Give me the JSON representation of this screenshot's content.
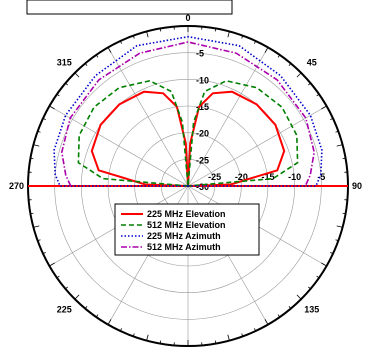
{
  "chart_data": {
    "type": "polar",
    "angle_direction": "clockwise",
    "angle_zero": "top",
    "angle_labels": [
      "0",
      "45",
      "90",
      "135",
      "225",
      "270",
      "315"
    ],
    "radial_labels": [
      "-5",
      "-10",
      "-15",
      "-20",
      "-25",
      "-30"
    ],
    "radial_axis_labels": [
      "-25",
      "-20",
      "-15",
      "-10",
      "-5"
    ],
    "rlim_db": [
      -30,
      0
    ],
    "ring_step_db": 5,
    "grid": true,
    "legend_position": "lower-center",
    "series": [
      {
        "name": "225 MHz Elevation",
        "color": "#ff0000",
        "style": "solid",
        "points": [
          [
            0,
            -30
          ],
          [
            3,
            -22
          ],
          [
            8,
            -15
          ],
          [
            15,
            -12
          ],
          [
            25,
            -10.5
          ],
          [
            40,
            -10
          ],
          [
            55,
            -10
          ],
          [
            70,
            -10.8
          ],
          [
            80,
            -13
          ],
          [
            88,
            -22
          ],
          [
            90,
            -30
          ]
        ]
      },
      {
        "name": "512 MHz Elevation",
        "color": "#008000",
        "style": "dashed",
        "points": [
          [
            0,
            -30
          ],
          [
            5,
            -18
          ],
          [
            10,
            -12
          ],
          [
            20,
            -9
          ],
          [
            35,
            -7.5
          ],
          [
            50,
            -7
          ],
          [
            65,
            -7.5
          ],
          [
            78,
            -9
          ],
          [
            85,
            -14
          ],
          [
            90,
            -30
          ]
        ]
      },
      {
        "name": "225 MHz Azimuth",
        "color": "#0000cc",
        "style": "dotted",
        "points": [
          [
            0,
            -2
          ],
          [
            20,
            -2
          ],
          [
            40,
            -3
          ],
          [
            60,
            -3.5
          ],
          [
            75,
            -4
          ],
          [
            85,
            -5
          ],
          [
            90,
            -6
          ],
          [
            95,
            -30
          ]
        ]
      },
      {
        "name": "512 MHz Azimuth",
        "color": "#aa00aa",
        "style": "dashdot",
        "points": [
          [
            0,
            -3
          ],
          [
            20,
            -3.5
          ],
          [
            40,
            -4
          ],
          [
            60,
            -4.5
          ],
          [
            75,
            -5.5
          ],
          [
            85,
            -7
          ],
          [
            90,
            -8
          ]
        ]
      }
    ]
  }
}
